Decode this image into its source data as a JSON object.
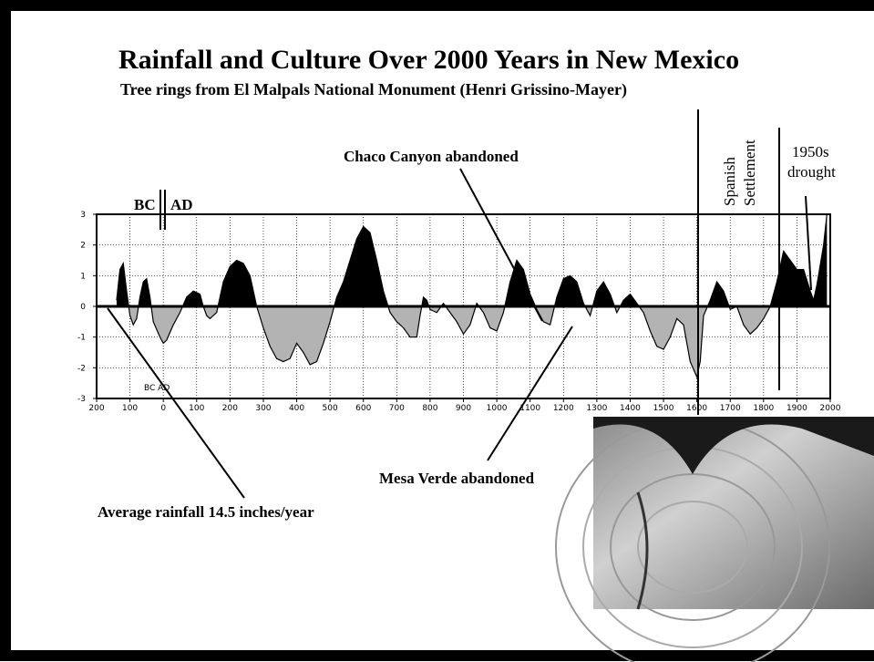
{
  "chart_data": {
    "type": "area",
    "title": "Rainfall and Culture Over 2000 Years in New Mexico",
    "subtitle": "Tree rings from El Malpals National Monument (Henri Grissino-Mayer)",
    "xlim": [
      -200,
      2000
    ],
    "ylim": [
      -3,
      3
    ],
    "xticks": [
      {
        "value": -200,
        "label": "200"
      },
      {
        "value": -100,
        "label": "100"
      },
      0,
      100,
      200,
      300,
      400,
      500,
      600,
      700,
      800,
      900,
      1000,
      1100,
      1200,
      1300,
      1400,
      1500,
      1600,
      1700,
      1800,
      1900,
      2000
    ],
    "yticks": [
      -3,
      -2,
      -1,
      0,
      1,
      2,
      3
    ],
    "grid": true,
    "positive_color": "#000000",
    "negative_color": "#b3b3b3",
    "x": [
      -140,
      -130,
      -120,
      -110,
      -100,
      -90,
      -80,
      -70,
      -60,
      -50,
      -40,
      -30,
      -10,
      0,
      10,
      30,
      50,
      70,
      90,
      110,
      120,
      130,
      140,
      160,
      180,
      200,
      220,
      240,
      260,
      280,
      300,
      320,
      340,
      360,
      380,
      400,
      420,
      440,
      460,
      480,
      500,
      520,
      540,
      560,
      580,
      600,
      620,
      640,
      660,
      680,
      700,
      720,
      740,
      760,
      770,
      780,
      790,
      800,
      820,
      840,
      860,
      880,
      900,
      920,
      940,
      960,
      980,
      1000,
      1020,
      1040,
      1060,
      1080,
      1100,
      1120,
      1140,
      1160,
      1180,
      1200,
      1220,
      1240,
      1260,
      1280,
      1300,
      1320,
      1340,
      1360,
      1380,
      1400,
      1420,
      1440,
      1460,
      1480,
      1500,
      1520,
      1540,
      1560,
      1580,
      1600,
      1610,
      1620,
      1640,
      1660,
      1680,
      1700,
      1720,
      1740,
      1760,
      1780,
      1800,
      1820,
      1840,
      1860,
      1880,
      1900,
      1920,
      1940,
      1950,
      1960,
      1980,
      1990
    ],
    "values": [
      0.2,
      1.2,
      1.4,
      0.5,
      -0.3,
      -0.6,
      -0.4,
      0.3,
      0.8,
      0.9,
      0.3,
      -0.5,
      -1.0,
      -1.2,
      -1.1,
      -0.6,
      -0.2,
      0.3,
      0.5,
      0.4,
      0,
      -0.3,
      -0.4,
      -0.2,
      0.8,
      1.3,
      1.5,
      1.4,
      1.0,
      0,
      -0.7,
      -1.3,
      -1.7,
      -1.8,
      -1.7,
      -1.2,
      -1.5,
      -1.9,
      -1.8,
      -1.2,
      -0.5,
      0.3,
      0.8,
      1.5,
      2.2,
      2.6,
      2.4,
      1.5,
      0.5,
      -0.2,
      -0.5,
      -0.7,
      -1.0,
      -1.0,
      -0.3,
      0.3,
      0.2,
      -0.1,
      -0.2,
      0.1,
      -0.2,
      -0.5,
      -0.9,
      -0.6,
      0.1,
      -0.2,
      -0.7,
      -0.8,
      -0.2,
      0.8,
      1.5,
      1.2,
      0.4,
      -0.1,
      -0.5,
      -0.6,
      0.3,
      0.9,
      1.0,
      0.8,
      0.1,
      -0.3,
      0.5,
      0.8,
      0.4,
      -0.2,
      0.2,
      0.4,
      0.1,
      -0.2,
      -0.8,
      -1.3,
      -1.4,
      -1.0,
      -0.4,
      -0.6,
      -1.8,
      -2.3,
      -1.8,
      -0.3,
      0.2,
      0.8,
      0.5,
      -0.1,
      0,
      -0.6,
      -0.9,
      -0.7,
      -0.4,
      0.0,
      0.8,
      1.8,
      1.5,
      1.2,
      1.2,
      0.5,
      0.2,
      0.7,
      2.0,
      3.0
    ],
    "era_labels": {
      "bc": "BC",
      "ad": "AD",
      "inner": "BC AD"
    },
    "annotations": {
      "chaco": "Chaco Canyon abandoned",
      "mesa_verde": "Mesa Verde abandoned",
      "average": "Average rainfall 14.5 inches/year",
      "spanish_1": "Spanish",
      "spanish_2": "Settlement",
      "drought_1": "1950s",
      "drought_2": "drought"
    }
  }
}
